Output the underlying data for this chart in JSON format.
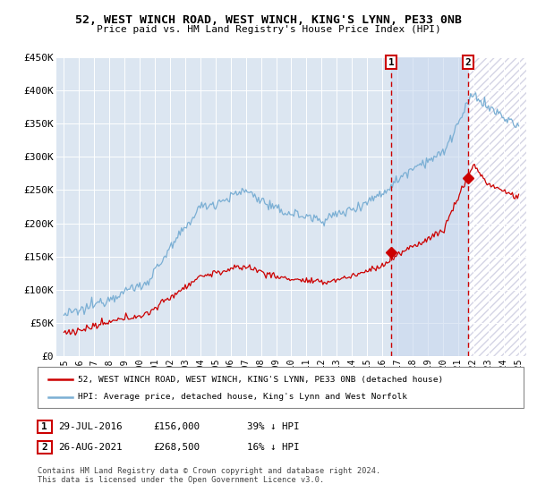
{
  "title": "52, WEST WINCH ROAD, WEST WINCH, KING'S LYNN, PE33 0NB",
  "subtitle": "Price paid vs. HM Land Registry's House Price Index (HPI)",
  "red_label": "52, WEST WINCH ROAD, WEST WINCH, KING'S LYNN, PE33 0NB (detached house)",
  "blue_label": "HPI: Average price, detached house, King's Lynn and West Norfolk",
  "transaction1_date": "29-JUL-2016",
  "transaction1_price": "£156,000",
  "transaction1_hpi": "39% ↓ HPI",
  "transaction2_date": "26-AUG-2021",
  "transaction2_price": "£268,500",
  "transaction2_hpi": "16% ↓ HPI",
  "footer": "Contains HM Land Registry data © Crown copyright and database right 2024.\nThis data is licensed under the Open Government Licence v3.0.",
  "ylim": [
    0,
    450000
  ],
  "yticks": [
    0,
    50000,
    100000,
    150000,
    200000,
    250000,
    300000,
    350000,
    400000,
    450000
  ],
  "ytick_labels": [
    "£0",
    "£50K",
    "£100K",
    "£150K",
    "£200K",
    "£250K",
    "£300K",
    "£350K",
    "£400K",
    "£450K"
  ],
  "background_color": "#ffffff",
  "plot_bg_color": "#dce6f1",
  "red_color": "#cc0000",
  "blue_color": "#7bafd4",
  "grid_color": "#ffffff",
  "transaction1_x_year": 2016.58,
  "transaction2_x_year": 2021.66,
  "t1_price_val": 156000,
  "t2_price_val": 268500,
  "xmin": 1994.5,
  "xmax": 2025.5,
  "xtick_years": [
    1995,
    1996,
    1997,
    1998,
    1999,
    2000,
    2001,
    2002,
    2003,
    2004,
    2005,
    2006,
    2007,
    2008,
    2009,
    2010,
    2011,
    2012,
    2013,
    2014,
    2015,
    2016,
    2017,
    2018,
    2019,
    2020,
    2021,
    2022,
    2023,
    2024,
    2025
  ]
}
